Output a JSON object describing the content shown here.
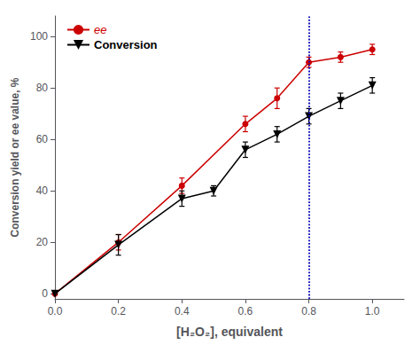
{
  "chart_data": {
    "type": "line",
    "xlabel": "[H₂O₂], equivalent",
    "ylabel": "Conversion yield or ee value, %",
    "series": [
      {
        "name": "ee",
        "color": "#cc0000",
        "marker": "circle",
        "x": [
          0.0,
          0.2,
          0.4,
          0.6,
          0.7,
          0.8,
          0.9,
          1.0
        ],
        "values": [
          0,
          20,
          42,
          66,
          76,
          90,
          92,
          95
        ],
        "errors": [
          0,
          3,
          3,
          3,
          4,
          2,
          2,
          2
        ]
      },
      {
        "name": "Conversion",
        "color": "#000000",
        "marker": "triangle_down",
        "x": [
          0.0,
          0.2,
          0.4,
          0.5,
          0.6,
          0.7,
          0.8,
          0.9,
          1.0
        ],
        "values": [
          0,
          19,
          37,
          40,
          56,
          62,
          69,
          75,
          81
        ],
        "errors": [
          0,
          4,
          3,
          2,
          3,
          3,
          3,
          3,
          3
        ]
      }
    ],
    "vline": {
      "x": 0.8,
      "color": "#0000bb",
      "line_style": "dotted"
    },
    "xlim": [
      0.0,
      1.1
    ],
    "ylim": [
      -2,
      108
    ],
    "xticks": [
      {
        "value": 0,
        "label": "0.0"
      },
      0.2,
      0.4,
      0.6,
      0.8,
      {
        "value": 1,
        "label": "1.0"
      }
    ],
    "yticks": [
      0,
      20,
      40,
      60,
      80,
      100
    ],
    "legend": "upper left",
    "grid": false
  }
}
